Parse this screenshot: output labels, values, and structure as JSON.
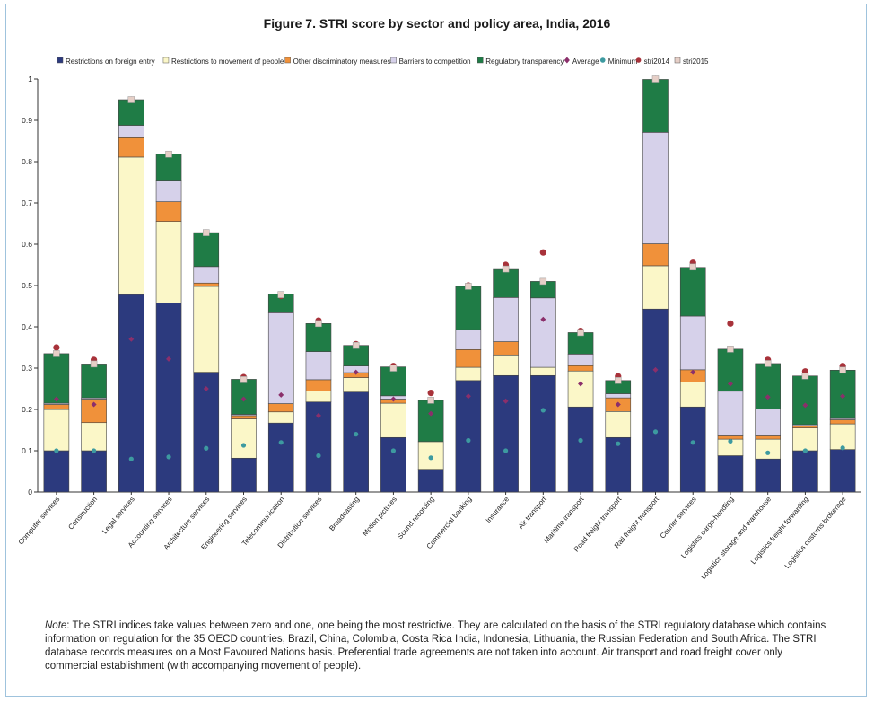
{
  "chart_data": {
    "type": "bar",
    "stacked": true,
    "title": "Figure 7. STRI score by sector and policy area, India, 2016",
    "ylim": [
      0,
      1
    ],
    "yticks": [
      "0",
      "0.1",
      "0.2",
      "0.3",
      "0.4",
      "0.5",
      "0.6",
      "0.7",
      "0.8",
      "0.9",
      "1"
    ],
    "grid": false,
    "legend_position": "top",
    "categories": [
      "Computer services",
      "Construction",
      "Legal services",
      "Accounting services",
      "Architecture services",
      "Engineering services",
      "Telecommunication",
      "Distribution services",
      "Broadcasting",
      "Motion pictures",
      "Sound recording",
      "Commercial banking",
      "Insurance",
      "Air transport",
      "Maritime transport",
      "Road freight transport",
      "Rail freight transport",
      "Courier services",
      "Logistics cargo-handling",
      "Logistics storage and warehouse",
      "Logistics freight forwarding",
      "Logistics customs brokerage"
    ],
    "series": [
      {
        "name": "Restrictions on foreign entry",
        "color": "#2c3a7e",
        "values": [
          0.1,
          0.1,
          0.478,
          0.458,
          0.29,
          0.082,
          0.167,
          0.218,
          0.242,
          0.132,
          0.055,
          0.27,
          0.282,
          0.282,
          0.206,
          0.132,
          0.443,
          0.206,
          0.088,
          0.08,
          0.1,
          0.103
        ]
      },
      {
        "name": "Restrictions to movement of people",
        "color": "#fbf7c8",
        "values": [
          0.1,
          0.068,
          0.333,
          0.197,
          0.208,
          0.095,
          0.027,
          0.027,
          0.035,
          0.083,
          0.067,
          0.032,
          0.05,
          0.02,
          0.087,
          0.063,
          0.105,
          0.06,
          0.04,
          0.048,
          0.055,
          0.062
        ]
      },
      {
        "name": "Other discriminatory measures",
        "color": "#f0913a",
        "values": [
          0.012,
          0.057,
          0.047,
          0.048,
          0.008,
          0.008,
          0.02,
          0.027,
          0.012,
          0.01,
          0.0,
          0.043,
          0.032,
          0.0,
          0.013,
          0.033,
          0.053,
          0.03,
          0.008,
          0.008,
          0.005,
          0.01
        ]
      },
      {
        "name": "Barriers to competition",
        "color": "#d6d1ea",
        "values": [
          0.003,
          0.003,
          0.03,
          0.05,
          0.04,
          0.003,
          0.22,
          0.068,
          0.016,
          0.008,
          0.0,
          0.048,
          0.107,
          0.168,
          0.028,
          0.01,
          0.27,
          0.13,
          0.108,
          0.065,
          0.003,
          0.003
        ]
      },
      {
        "name": "Regulatory transparency",
        "color": "#1f7c46",
        "values": [
          0.12,
          0.082,
          0.062,
          0.065,
          0.082,
          0.085,
          0.045,
          0.068,
          0.05,
          0.07,
          0.1,
          0.105,
          0.068,
          0.04,
          0.052,
          0.032,
          0.128,
          0.118,
          0.102,
          0.11,
          0.118,
          0.117
        ]
      }
    ],
    "markers": [
      {
        "name": "Average",
        "color": "#8b2f6b",
        "values": [
          0.225,
          0.212,
          0.37,
          0.322,
          0.25,
          0.225,
          0.235,
          0.185,
          0.29,
          0.225,
          0.19,
          0.232,
          0.22,
          0.418,
          0.262,
          0.212,
          0.296,
          0.29,
          0.262,
          0.23,
          0.21,
          0.232
        ]
      },
      {
        "name": "Minimum",
        "color": "#3d9aa0",
        "values": [
          0.1,
          0.1,
          0.08,
          0.085,
          0.106,
          0.113,
          0.12,
          0.088,
          0.14,
          0.1,
          0.083,
          0.125,
          0.1,
          0.198,
          0.125,
          0.117,
          0.146,
          0.12,
          0.123,
          0.095,
          0.1,
          0.107
        ]
      },
      {
        "name": "stri2014",
        "color": "#a8323a",
        "values": [
          0.35,
          0.32,
          0.95,
          0.818,
          0.628,
          0.278,
          0.475,
          0.415,
          0.358,
          0.305,
          0.24,
          0.5,
          0.55,
          0.58,
          0.39,
          0.28,
          1.0,
          0.555,
          0.408,
          0.32,
          0.292,
          0.305
        ]
      },
      {
        "name": "stri2015",
        "color": "#e6cfc7",
        "values": [
          0.335,
          0.31,
          0.95,
          0.818,
          0.628,
          0.272,
          0.478,
          0.408,
          0.355,
          0.3,
          0.222,
          0.498,
          0.54,
          0.51,
          0.386,
          0.27,
          1.0,
          0.545,
          0.346,
          0.311,
          0.281,
          0.295
        ]
      }
    ]
  },
  "note": {
    "label": "Note",
    "text": ": The STRI indices take values between zero and one, one being the most restrictive. They are calculated on the basis of the STRI regulatory database which contains information on regulation for the 35 OECD countries, Brazil, China, Colombia, Costa Rica India, Indonesia, Lithuania, the Russian Federation and South Africa. The STRI database records measures on a Most Favoured Nations basis. Preferential trade agreements are not taken into account. Air transport and road freight cover only commercial establishment (with accompanying movement of people)."
  }
}
